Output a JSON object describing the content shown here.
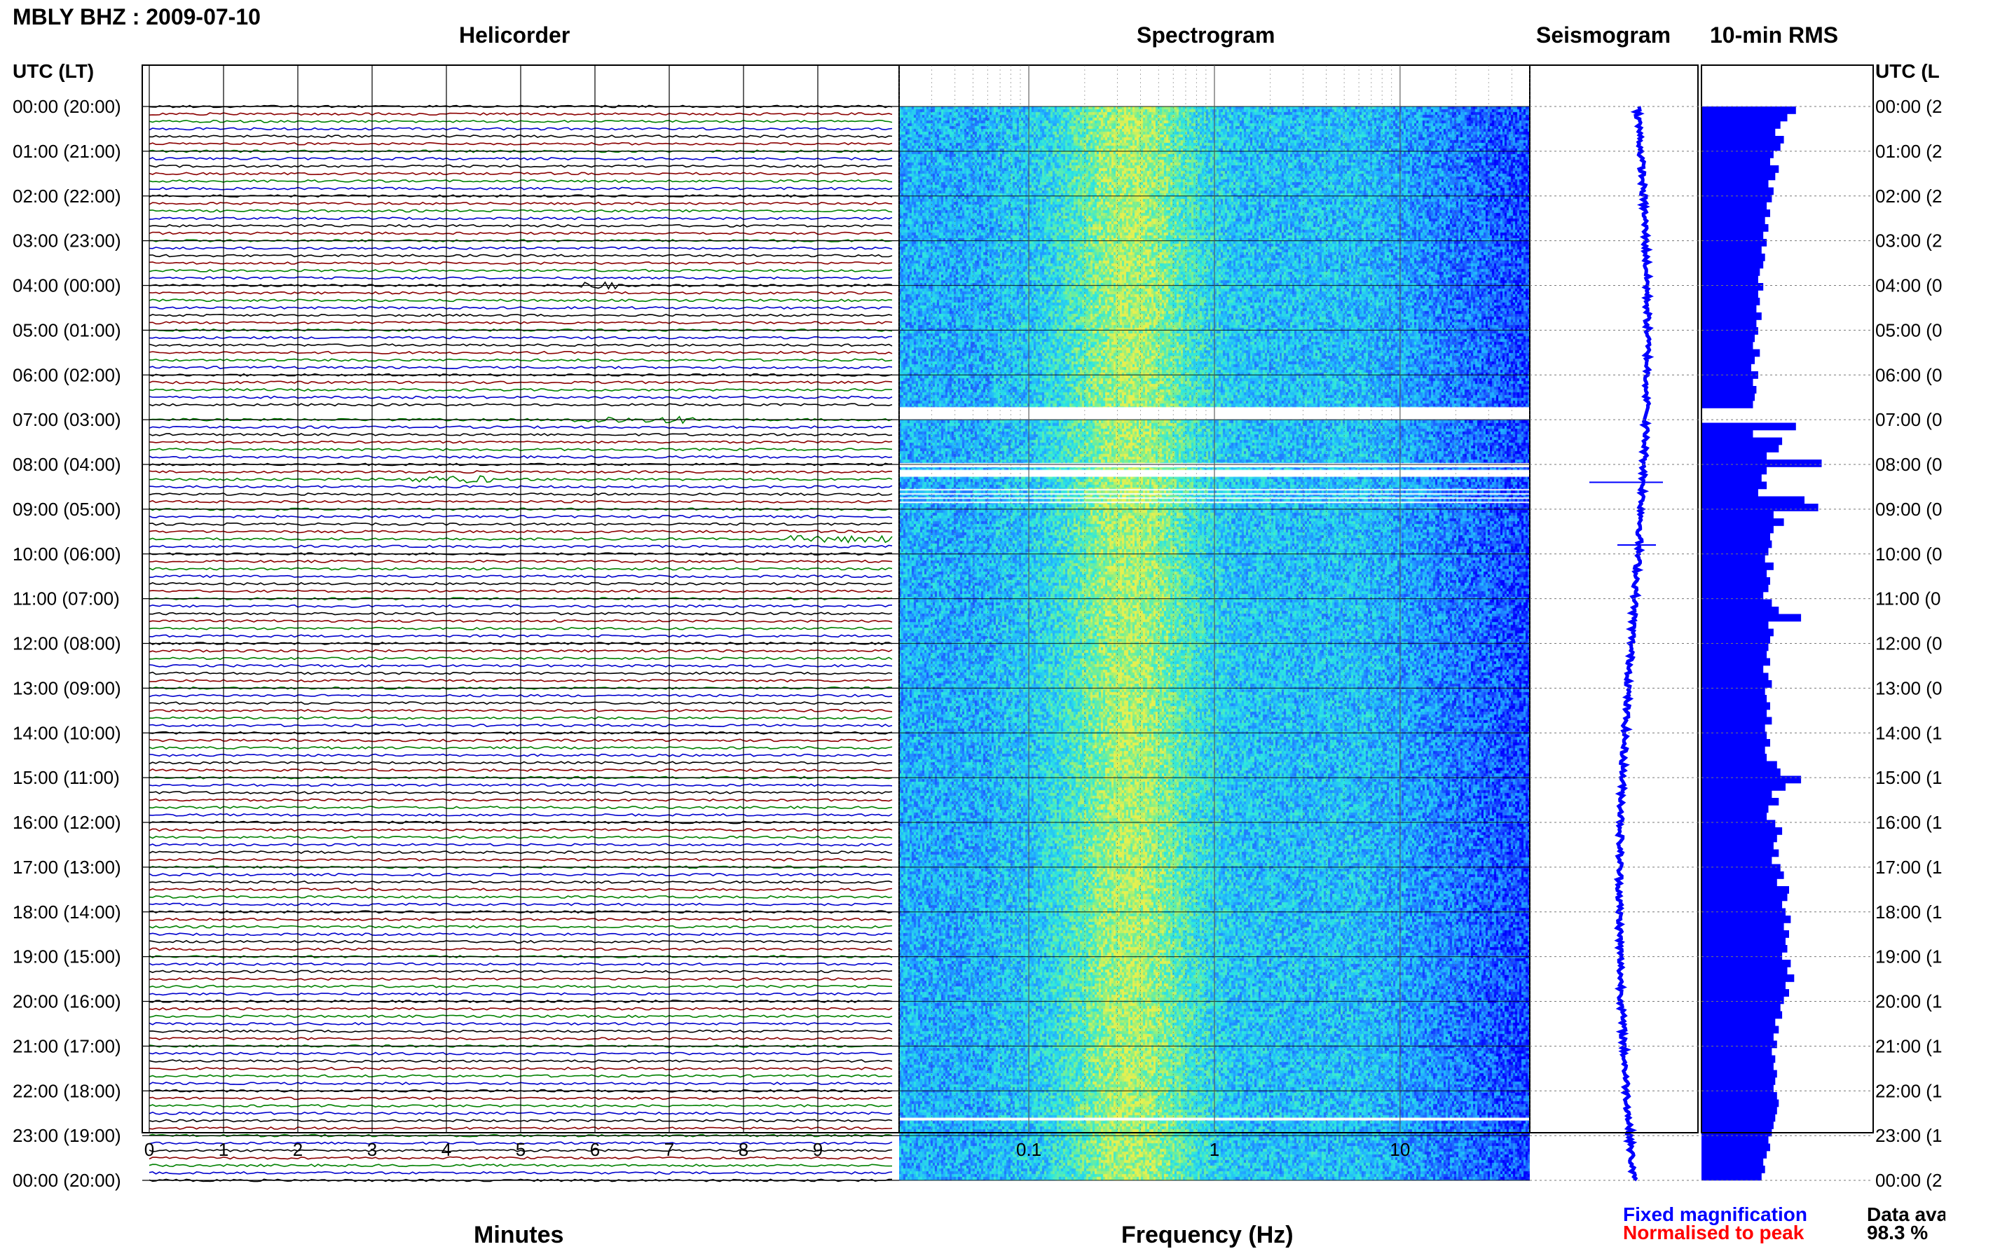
{
  "header": {
    "title": "MBLY BHZ : 2009-07-10",
    "utc_label_left": "UTC (LT)",
    "utc_label_right": "UTC (L"
  },
  "panels": {
    "helicorder": "Helicorder",
    "spectrogram": "Spectrogram",
    "seismogram": "Seismogram",
    "rms": "10-min RMS"
  },
  "time_labels_left": [
    "00:00 (20:00)",
    "01:00 (21:00)",
    "02:00 (22:00)",
    "03:00 (23:00)",
    "04:00 (00:00)",
    "05:00 (01:00)",
    "06:00 (02:00)",
    "07:00 (03:00)",
    "08:00 (04:00)",
    "09:00 (05:00)",
    "10:00 (06:00)",
    "11:00 (07:00)",
    "12:00 (08:00)",
    "13:00 (09:00)",
    "14:00 (10:00)",
    "15:00 (11:00)",
    "16:00 (12:00)",
    "17:00 (13:00)",
    "18:00 (14:00)",
    "19:00 (15:00)",
    "20:00 (16:00)",
    "21:00 (17:00)",
    "22:00 (18:00)",
    "23:00 (19:00)",
    "00:00 (20:00)"
  ],
  "time_labels_right": [
    "00:00 (2",
    "01:00 (2",
    "02:00 (2",
    "03:00 (2",
    "04:00 (0",
    "05:00 (0",
    "06:00 (0",
    "07:00 (0",
    "08:00 (0",
    "09:00 (0",
    "10:00 (0",
    "11:00 (0",
    "12:00 (0",
    "13:00 (0",
    "14:00 (1",
    "15:00 (1",
    "16:00 (1",
    "17:00 (1",
    "18:00 (1",
    "19:00 (1",
    "20:00 (1",
    "21:00 (1",
    "22:00 (1",
    "23:00 (1",
    "00:00 (2"
  ],
  "axes": {
    "minutes_label": "Minutes",
    "minutes_ticks": [
      "0",
      "1",
      "2",
      "3",
      "4",
      "5",
      "6",
      "7",
      "8",
      "9"
    ],
    "frequency_label": "Frequency (Hz)",
    "frequency_ticks": [
      "0.1",
      "1",
      "10"
    ]
  },
  "legend": {
    "fixed": "Fixed magnification",
    "normalised": "Normalised to peak",
    "fixed_color": "#0000ff",
    "normalised_color": "#ff0000"
  },
  "availability": {
    "label": "Data ava",
    "value": "98.3 %"
  },
  "chart_data": [
    {
      "type": "line",
      "name": "helicorder",
      "title": "Helicorder",
      "xlabel": "Minutes",
      "xlim": [
        0,
        10
      ],
      "x_ticks": [
        0,
        1,
        2,
        3,
        4,
        5,
        6,
        7,
        8,
        9
      ],
      "rows_per_hour": 6,
      "hours": 24,
      "trace_colors": [
        "#000000",
        "#8b0000",
        "#008000",
        "#0000cd"
      ],
      "data_gap_hours": [
        6.8,
        7.0
      ],
      "events": [
        {
          "hour": 4.0,
          "minute_start": 5.8,
          "minute_end": 6.3,
          "note": "small wave"
        },
        {
          "hour": 7.0,
          "minute_start": 5.7,
          "minute_end": 6.5
        },
        {
          "hour": 7.0,
          "minute_start": 6.6,
          "minute_end": 7.4
        },
        {
          "hour": 8.3,
          "minute_start": 3.5,
          "minute_end": 4.6
        },
        {
          "hour": 9.6,
          "minute_start": 8.6,
          "minute_end": 10.0
        }
      ]
    },
    {
      "type": "heatmap",
      "name": "spectrogram",
      "title": "Spectrogram",
      "xlabel": "Frequency (Hz)",
      "xscale": "log",
      "xlim": [
        0.02,
        50
      ],
      "x_ticks": [
        0.1,
        1,
        10
      ],
      "data_gap_hours": [
        6.7,
        7.0
      ],
      "colormap": [
        "#0000ff",
        "#1e64ff",
        "#22b4ff",
        "#2ee8e0",
        "#7ef08c",
        "#e6f050"
      ]
    },
    {
      "type": "line",
      "name": "seismogram",
      "title": "Seismogram",
      "hours": 24
    },
    {
      "type": "bar",
      "name": "rms",
      "title": "10-min RMS",
      "orientation": "horizontal",
      "values": [
        0.55,
        0.5,
        0.46,
        0.43,
        0.48,
        0.46,
        0.42,
        0.4,
        0.45,
        0.43,
        0.39,
        0.42,
        0.41,
        0.38,
        0.4,
        0.37,
        0.39,
        0.36,
        0.38,
        0.35,
        0.37,
        0.36,
        0.34,
        0.33,
        0.36,
        0.33,
        0.34,
        0.32,
        0.35,
        0.32,
        0.33,
        0.31,
        0.3,
        0.34,
        0.31,
        0.29,
        0.33,
        0.3,
        0.32,
        0.31,
        0.3,
        0.0,
        0.0,
        0.55,
        0.3,
        0.47,
        0.45,
        0.38,
        0.7,
        0.38,
        0.35,
        0.38,
        0.33,
        0.6,
        0.68,
        0.42,
        0.48,
        0.42,
        0.4,
        0.41,
        0.39,
        0.37,
        0.42,
        0.38,
        0.4,
        0.39,
        0.36,
        0.41,
        0.45,
        0.58,
        0.39,
        0.42,
        0.4,
        0.39,
        0.38,
        0.4,
        0.36,
        0.39,
        0.41,
        0.37,
        0.38,
        0.4,
        0.38,
        0.41,
        0.37,
        0.38,
        0.4,
        0.37,
        0.38,
        0.44,
        0.46,
        0.58,
        0.49,
        0.41,
        0.45,
        0.39,
        0.38,
        0.43,
        0.47,
        0.44,
        0.42,
        0.45,
        0.41,
        0.46,
        0.48,
        0.44,
        0.51,
        0.5,
        0.47,
        0.49,
        0.52,
        0.48,
        0.51,
        0.49,
        0.5,
        0.47,
        0.52,
        0.5,
        0.54,
        0.49,
        0.51,
        0.48,
        0.46,
        0.47,
        0.43,
        0.45,
        0.42,
        0.44,
        0.41,
        0.43,
        0.42,
        0.44,
        0.43,
        0.42,
        0.44,
        0.45,
        0.44,
        0.43,
        0.42,
        0.41,
        0.39,
        0.4,
        0.38,
        0.36,
        0.37,
        0.35
      ],
      "xlim": [
        0,
        1
      ]
    }
  ]
}
